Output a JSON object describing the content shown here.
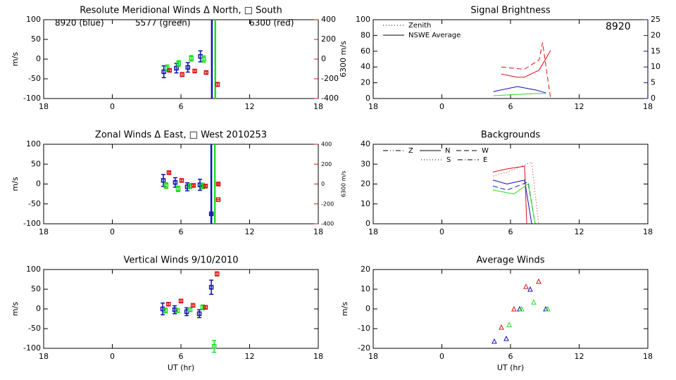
{
  "chart_data": [
    {
      "type": "scatter",
      "marker": "square",
      "title": "Resolute Meridional Winds Δ North, □ South",
      "ylabel": "m/s",
      "y2label": "6300 m/s",
      "y2color": "#dd1010",
      "xlim": [
        -6,
        18
      ],
      "xticks": [
        {
          "value": -6,
          "label": "18"
        },
        0,
        6,
        12,
        18
      ],
      "ylim": [
        -100,
        100
      ],
      "yticks": [
        -100,
        -50,
        0,
        50,
        100
      ],
      "y2lim": [
        -400,
        400
      ],
      "y2ticks": [
        -400,
        -200,
        0,
        200,
        400
      ],
      "vlines": [
        {
          "x": 8.7,
          "color": "#1010b0"
        },
        {
          "x": 9.0,
          "color": "#22dd22"
        }
      ],
      "series": [
        {
          "name": "8920 (blue)",
          "color": "#1010b0",
          "x": [
            4.5,
            5.6,
            6.6,
            7.7
          ],
          "values": [
            -32,
            -23,
            -21,
            7
          ],
          "errors": [
            15,
            12,
            12,
            14
          ]
        },
        {
          "name": "5577 (green)",
          "color": "#22dd22",
          "x": [
            4.8,
            5.8,
            6.9,
            8.0
          ],
          "values": [
            -23,
            -11,
            2,
            0
          ],
          "errors": [
            8,
            7,
            7,
            8
          ]
        },
        {
          "name": "6300 (red)",
          "color": "#dd1010",
          "axis": "y2",
          "x": [
            5.0,
            6.1,
            7.2,
            8.2,
            9.2
          ],
          "values": [
            -114,
            -157,
            -121,
            -136,
            -257
          ],
          "errors": [
            15,
            20,
            15,
            15,
            20
          ]
        }
      ]
    },
    {
      "type": "scatter",
      "marker": "square",
      "title": "Zonal Winds Δ East, □ West 2010253",
      "ylabel": "m/s",
      "y2label": "6300 m/s",
      "y2color": "#dd1010",
      "xlim": [
        -6,
        18
      ],
      "xticks": [
        {
          "value": -6,
          "label": "18"
        },
        0,
        6,
        12,
        18
      ],
      "ylim": [
        -100,
        100
      ],
      "yticks": [
        -100,
        -50,
        0,
        50,
        100
      ],
      "y2lim": [
        -400,
        400
      ],
      "y2ticks": [
        -400,
        -200,
        0,
        200,
        400
      ],
      "vlines": [
        {
          "x": 8.65,
          "color": "#1010b0"
        },
        {
          "x": 8.96,
          "color": "#22dd22"
        }
      ],
      "series": [
        {
          "color": "#1010b0",
          "x": [
            4.46,
            5.5,
            6.55,
            7.66,
            8.65
          ],
          "values": [
            9,
            4,
            -7,
            -2,
            -75
          ],
          "errors": [
            15,
            12,
            10,
            14,
            0
          ]
        },
        {
          "color": "#22dd22",
          "x": [
            4.7,
            5.75,
            6.8,
            7.9
          ],
          "values": [
            -4,
            -12,
            -5,
            -5
          ],
          "errors": [
            7,
            7,
            6,
            7
          ]
        },
        {
          "color": "#dd1010",
          "axis": "y2",
          "x": [
            4.95,
            6.06,
            7.1,
            8.15,
            9.26,
            9.26
          ],
          "values": [
            114,
            36,
            -14,
            -21,
            0,
            -157
          ],
          "errors": [
            12,
            15,
            12,
            12,
            10,
            0
          ]
        }
      ]
    },
    {
      "type": "scatter",
      "marker": "square",
      "title": "Vertical Winds 9/10/2010",
      "ylabel": "m/s",
      "xlabel": "UT (hr)",
      "xlim": [
        -6,
        18
      ],
      "xticks": [
        {
          "value": -6,
          "label": "18"
        },
        0,
        6,
        12,
        18
      ],
      "ylim": [
        -100,
        100
      ],
      "yticks": [
        -100,
        -50,
        0,
        50,
        100
      ],
      "series": [
        {
          "color": "#1010b0",
          "x": [
            4.4,
            5.45,
            6.5,
            7.6,
            8.65
          ],
          "values": [
            0,
            -2,
            -7,
            -12,
            55
          ],
          "errors": [
            15,
            10,
            10,
            10,
            18
          ]
        },
        {
          "color": "#22dd22",
          "x": [
            4.65,
            5.7,
            6.8,
            7.9,
            8.9
          ],
          "values": [
            -4,
            -4,
            -2,
            4,
            -95
          ],
          "errors": [
            6,
            5,
            5,
            6,
            15
          ]
        },
        {
          "color": "#dd1010",
          "x": [
            4.9,
            6.0,
            7.05,
            8.15,
            9.15
          ],
          "values": [
            12,
            20,
            9,
            4,
            89
          ],
          "errors": [
            4,
            4,
            4,
            4,
            5
          ]
        }
      ]
    },
    {
      "type": "line",
      "title": "Signal Brightness",
      "y2color": "#1010b0",
      "xlim": [
        -6,
        18
      ],
      "xticks": [
        {
          "value": -6,
          "label": "18"
        },
        0,
        6,
        12,
        18
      ],
      "ylim": [
        0,
        100
      ],
      "yticks": [
        0,
        20,
        40,
        60,
        80,
        100
      ],
      "y2lim": [
        0,
        25
      ],
      "y2ticks": [
        0,
        5,
        10,
        15,
        20,
        25
      ],
      "annotations": [
        {
          "text": "8920",
          "color": "#1010b0"
        }
      ],
      "legend": [
        {
          "label": "Zenith",
          "dash": "dotted"
        },
        {
          "label": "NSWE Average",
          "dash": "solid"
        }
      ],
      "series": [
        {
          "color": "#dd1010",
          "dash": "solid",
          "x": [
            5.2,
            6.6,
            7.2,
            8.5,
            9.5
          ],
          "values": [
            31,
            27,
            27,
            36,
            61
          ]
        },
        {
          "color": "#dd1010",
          "dash": "dashed",
          "x": [
            5.2,
            7.2,
            8.5,
            8.8,
            9.5
          ],
          "values": [
            40,
            37,
            49,
            71,
            0
          ]
        },
        {
          "color": "#1010b0",
          "dash": "solid",
          "axis": "y2",
          "x": [
            4.5,
            6.6,
            8.2,
            9.1
          ],
          "values": [
            2.2,
            3.8,
            2.7,
            1.8
          ]
        },
        {
          "color": "#22dd22",
          "dash": "solid",
          "axis": "y2",
          "x": [
            4.5,
            8.2,
            9.1
          ],
          "values": [
            0.9,
            1.6,
            1.6
          ]
        }
      ]
    },
    {
      "type": "line",
      "title": "Backgrounds",
      "xlim": [
        -6,
        18
      ],
      "xticks": [
        {
          "value": -6,
          "label": "18"
        },
        0,
        6,
        12,
        18
      ],
      "ylim": [
        0,
        40
      ],
      "yticks": [
        0,
        10,
        20,
        30,
        40
      ],
      "legend": [
        {
          "label": "Z",
          "dash": "dashdotdot"
        },
        {
          "label": "N",
          "dash": "solid"
        },
        {
          "label": "W",
          "dash": "dashed"
        },
        {
          "label": "S",
          "dash": "dotted"
        },
        {
          "label": "E",
          "dash": "dashdot"
        }
      ],
      "series": [
        {
          "color": "#dd1010",
          "dash": "solid",
          "x": [
            4.46,
            5.69,
            7.23,
            7.42
          ],
          "values": [
            26,
            27.6,
            29,
            0
          ]
        },
        {
          "color": "#dd1010",
          "dash": "dotted",
          "x": [
            4.46,
            5.69,
            7.85,
            8.46
          ],
          "values": [
            24,
            26,
            31,
            0
          ]
        },
        {
          "color": "#1010b0",
          "dash": "solid",
          "x": [
            4.46,
            5.69,
            7.23,
            7.85
          ],
          "values": [
            22,
            20,
            22,
            0
          ]
        },
        {
          "color": "#1010b0",
          "dash": "dashed",
          "x": [
            4.46,
            5.69,
            7.54,
            8.15
          ],
          "values": [
            19,
            17,
            21,
            0
          ]
        },
        {
          "color": "#22dd22",
          "dash": "solid",
          "x": [
            4.46,
            6.3,
            7.54,
            8.15
          ],
          "values": [
            17,
            15,
            20,
            0
          ]
        }
      ]
    },
    {
      "type": "scatter",
      "marker": "triangle",
      "title": "Average Winds",
      "ylabel": "m/s",
      "xlabel": "UT (hr)",
      "xlim": [
        -6,
        18
      ],
      "xticks": [
        {
          "value": -6,
          "label": "18"
        },
        0,
        6,
        12,
        18
      ],
      "ylim": [
        -20,
        20
      ],
      "yticks": [
        -20,
        -10,
        0,
        10,
        20
      ],
      "series": [
        {
          "color": "#1010b0",
          "x": [
            4.58,
            5.63,
            6.8,
            7.72,
            9.08
          ],
          "values": [
            -16.4,
            -15,
            0,
            10,
            0
          ]
        },
        {
          "color": "#22dd22",
          "x": [
            5.88,
            6.98,
            8.03,
            9.26
          ],
          "values": [
            -8,
            0,
            3.5,
            0
          ]
        },
        {
          "color": "#dd1010",
          "x": [
            5.2,
            6.3,
            7.35,
            8.46
          ],
          "values": [
            -9.3,
            0,
            11.4,
            14
          ]
        }
      ]
    }
  ]
}
